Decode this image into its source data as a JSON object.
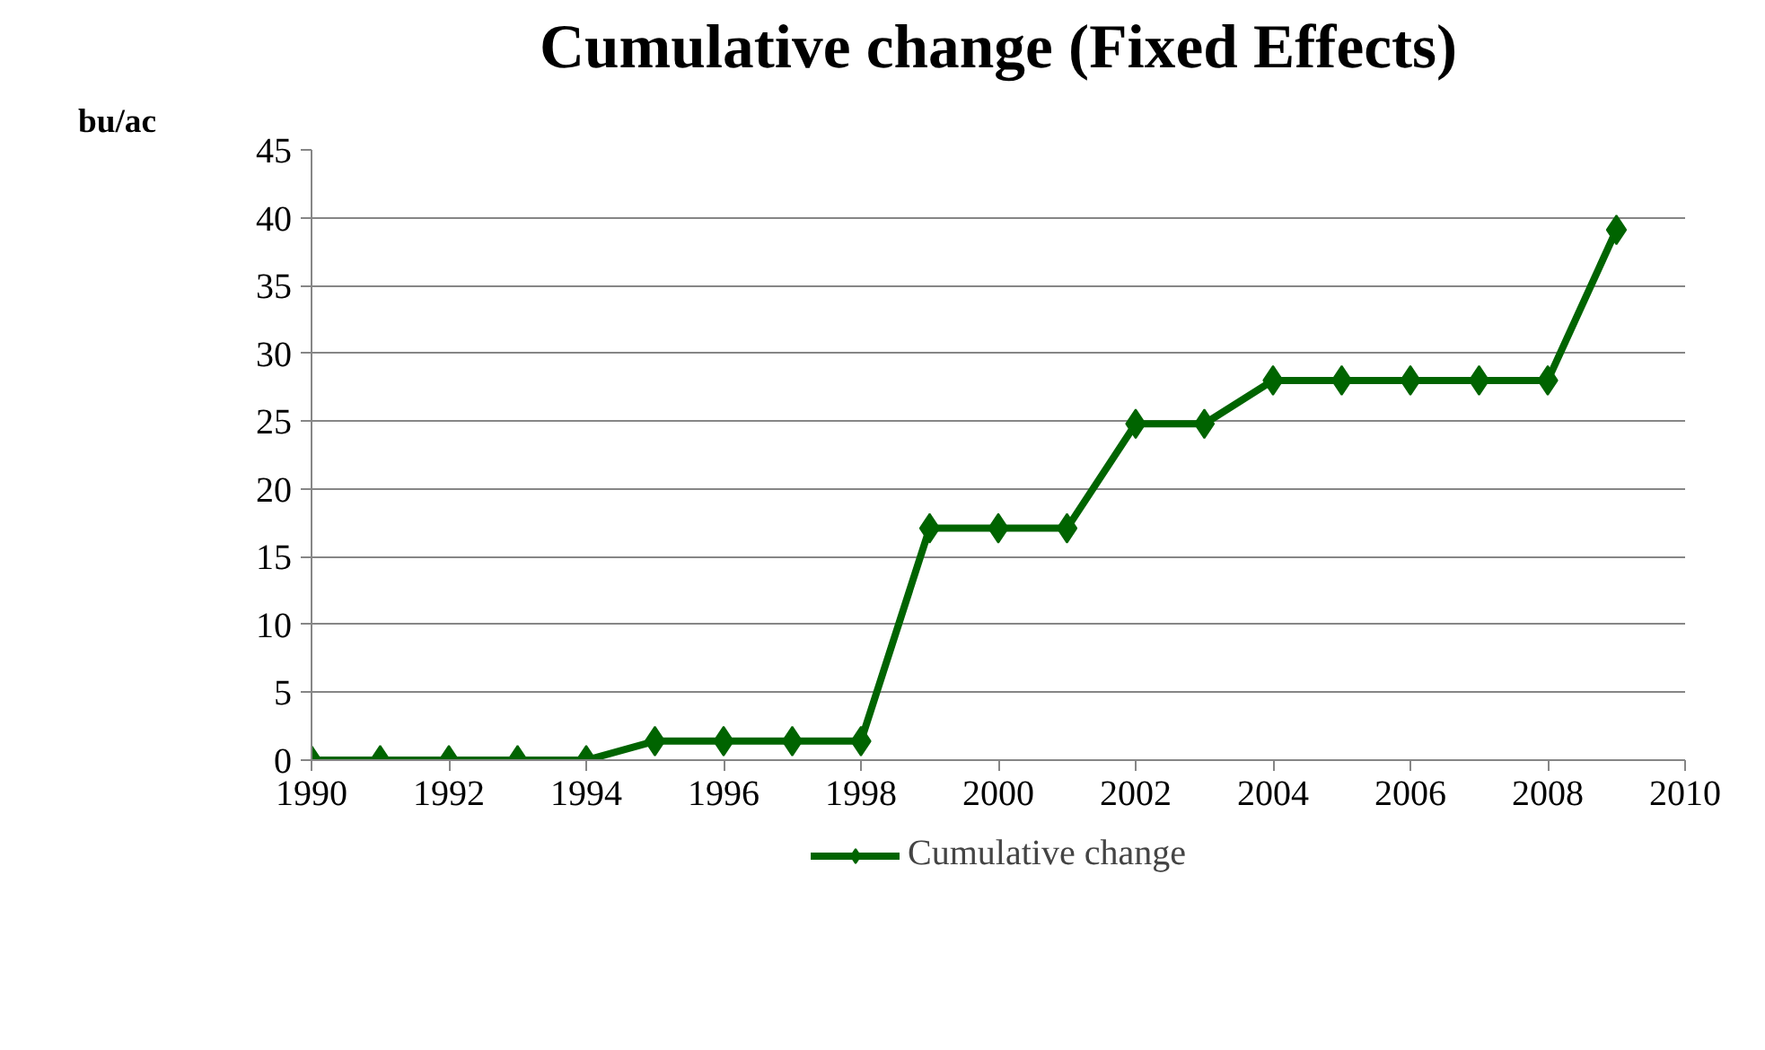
{
  "chart_data": {
    "type": "line",
    "title": "Cumulative change (Fixed Effects)",
    "ylabel": "bu/ac",
    "x": [
      1990,
      1991,
      1992,
      1993,
      1994,
      1995,
      1996,
      1997,
      1998,
      1999,
      2000,
      2001,
      2002,
      2003,
      2004,
      2005,
      2006,
      2007,
      2008,
      2009
    ],
    "series": [
      {
        "name": "Cumulative change",
        "color": "#006400",
        "values": [
          0,
          0,
          0,
          0,
          0,
          1.4,
          1.4,
          1.4,
          1.4,
          17.1,
          17.1,
          17.1,
          24.8,
          24.8,
          28,
          28,
          28,
          28,
          28,
          39.1
        ]
      }
    ],
    "xlim": [
      1990,
      2010
    ],
    "xticks": [
      1990,
      1992,
      1994,
      1996,
      1998,
      2000,
      2002,
      2004,
      2006,
      2008,
      2010
    ],
    "ylim": [
      0,
      45
    ],
    "yticks": [
      0,
      5,
      10,
      15,
      20,
      25,
      30,
      35,
      40,
      45
    ],
    "grid": "y",
    "legend": "bottom",
    "marker": "diamond",
    "line_style": "solid"
  }
}
